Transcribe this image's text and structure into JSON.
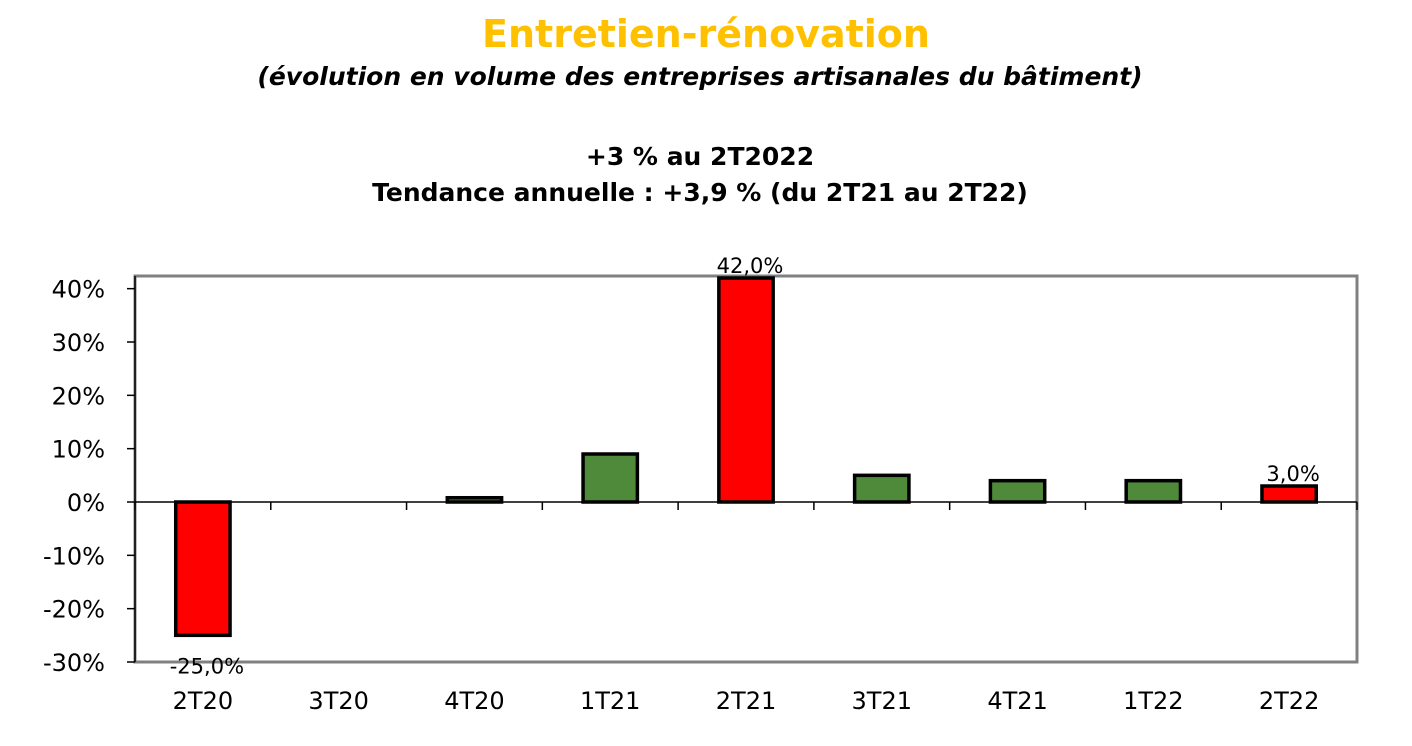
{
  "header": {
    "title": "Entretien-rénovation",
    "subtitle": "(évolution en volume des entreprises artisanales du bâtiment)",
    "headline1": "+3 % au 2T2022",
    "headline2": "Tendance annuelle : +3,9 % (du 2T21 au 2T22)"
  },
  "chart_data": {
    "type": "bar",
    "title": "",
    "xlabel": "",
    "ylabel": "",
    "categories": [
      "2T20",
      "3T20",
      "4T20",
      "1T21",
      "2T21",
      "3T21",
      "4T21",
      "1T22",
      "2T22"
    ],
    "values": [
      -25.0,
      0.0,
      0.8,
      9.0,
      42.0,
      5.0,
      4.0,
      4.0,
      3.0
    ],
    "bar_colors": [
      "#ff0000",
      "#4f8a3a",
      "#4f8a3a",
      "#4f8a3a",
      "#ff0000",
      "#4f8a3a",
      "#4f8a3a",
      "#4f8a3a",
      "#ff0000"
    ],
    "data_labels": [
      "-25,0%",
      "",
      "",
      "",
      "42,0%",
      "",
      "",
      "",
      "3,0%"
    ],
    "ylim": [
      -30,
      45
    ],
    "yticks": [
      -30,
      -20,
      -10,
      0,
      10,
      20,
      30,
      40
    ],
    "ytick_labels": [
      "-30%",
      "-20%",
      "-10%",
      "0%",
      "10%",
      "20%",
      "30%",
      "40%"
    ],
    "grid": false,
    "legend": "none"
  }
}
